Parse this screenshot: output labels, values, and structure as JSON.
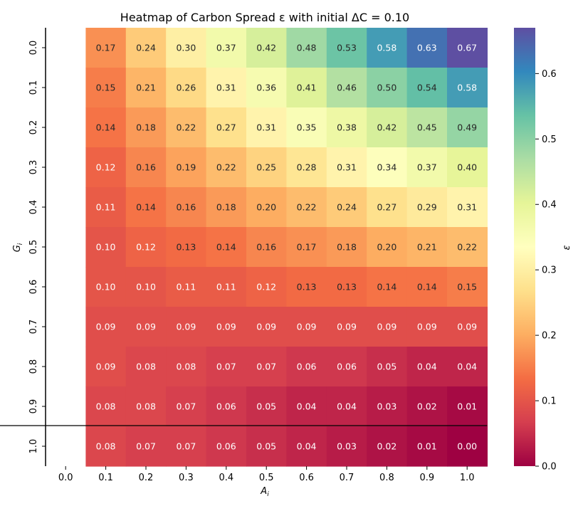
{
  "chart_data": {
    "type": "heatmap",
    "title": "Heatmap of Carbon Spread ε with initial ΔC = 0.10",
    "xlabel": "A",
    "xlabel_sub": "i",
    "ylabel": "G",
    "ylabel_sub": "i",
    "x_tick_labels": [
      "0.0",
      "0.1",
      "0.2",
      "0.3",
      "0.4",
      "0.5",
      "0.6",
      "0.7",
      "0.8",
      "0.9",
      "1.0"
    ],
    "y_tick_labels": [
      "0.0",
      "0.1",
      "0.2",
      "0.3",
      "0.4",
      "0.5",
      "0.6",
      "0.7",
      "0.8",
      "0.9",
      "1.0"
    ],
    "column_x_values": [
      "0.1",
      "0.2",
      "0.3",
      "0.4",
      "0.5",
      "0.6",
      "0.7",
      "0.8",
      "0.9",
      "1.0"
    ],
    "rows": [
      {
        "y": "0.0",
        "values": [
          0.17,
          0.24,
          0.3,
          0.37,
          0.42,
          0.48,
          0.53,
          0.58,
          0.63,
          0.67
        ]
      },
      {
        "y": "0.1",
        "values": [
          0.15,
          0.21,
          0.26,
          0.31,
          0.36,
          0.41,
          0.46,
          0.5,
          0.54,
          0.58
        ]
      },
      {
        "y": "0.2",
        "values": [
          0.14,
          0.18,
          0.22,
          0.27,
          0.31,
          0.35,
          0.38,
          0.42,
          0.45,
          0.49
        ]
      },
      {
        "y": "0.3",
        "values": [
          0.12,
          0.16,
          0.19,
          0.22,
          0.25,
          0.28,
          0.31,
          0.34,
          0.37,
          0.4
        ]
      },
      {
        "y": "0.4",
        "values": [
          0.11,
          0.14,
          0.16,
          0.18,
          0.2,
          0.22,
          0.24,
          0.27,
          0.29,
          0.31
        ]
      },
      {
        "y": "0.5",
        "values": [
          0.1,
          0.12,
          0.13,
          0.14,
          0.16,
          0.17,
          0.18,
          0.2,
          0.21,
          0.22
        ]
      },
      {
        "y": "0.6",
        "values": [
          0.1,
          0.1,
          0.11,
          0.11,
          0.12,
          0.13,
          0.13,
          0.14,
          0.14,
          0.15
        ]
      },
      {
        "y": "0.7",
        "values": [
          0.09,
          0.09,
          0.09,
          0.09,
          0.09,
          0.09,
          0.09,
          0.09,
          0.09,
          0.09
        ]
      },
      {
        "y": "0.8",
        "values": [
          0.09,
          0.08,
          0.08,
          0.07,
          0.07,
          0.06,
          0.06,
          0.05,
          0.04,
          0.04
        ]
      },
      {
        "y": "0.9",
        "values": [
          0.08,
          0.08,
          0.07,
          0.06,
          0.05,
          0.04,
          0.04,
          0.03,
          0.02,
          0.01
        ]
      },
      {
        "y": "1.0",
        "values": [
          0.08,
          0.07,
          0.07,
          0.06,
          0.05,
          0.04,
          0.03,
          0.02,
          0.01,
          0.0
        ]
      }
    ],
    "colormap": "Spectral",
    "color_stops": [
      "#9e0142",
      "#d53e4f",
      "#f46d43",
      "#fdae61",
      "#fee08b",
      "#ffffbf",
      "#e6f598",
      "#abdda4",
      "#66c2a5",
      "#3288bd",
      "#5e4fa2"
    ],
    "colorbar": {
      "label": "ε",
      "range": [
        0.0,
        0.67
      ],
      "tick_values": [
        0.0,
        0.1,
        0.2,
        0.3,
        0.4,
        0.5,
        0.6
      ],
      "tick_labels": [
        "0.0",
        "0.1",
        "0.2",
        "0.3",
        "0.4",
        "0.5",
        "0.6"
      ]
    },
    "horizontal_line_at_y": "between 0.9 and 1.0",
    "value_format": "2 decimals"
  }
}
